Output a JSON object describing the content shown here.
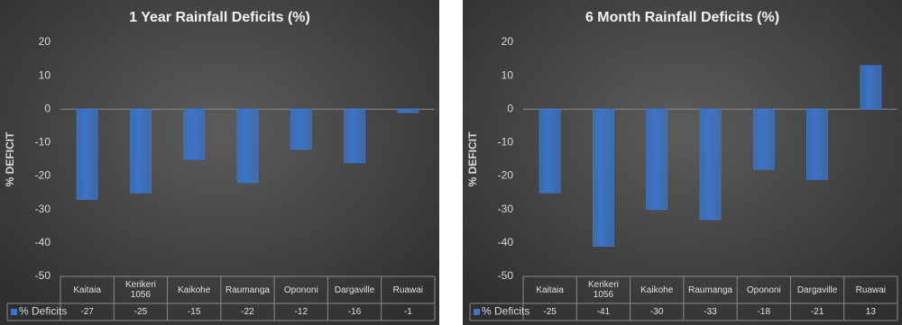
{
  "chart_data": [
    {
      "type": "bar",
      "title": "1 Year Rainfall Deficits (%)",
      "y_label": "% DEFICIT",
      "categories": [
        "Kaitaia",
        "Kerikeri 1056",
        "Kaikohe",
        "Raumanga",
        "Opononi",
        "Dargaville",
        "Ruawai"
      ],
      "series": [
        {
          "name": "% Deficits",
          "color": "#3b74c8",
          "values": [
            -27,
            -25,
            -15,
            -22,
            -12,
            -16,
            -1
          ]
        }
      ],
      "ylim": [
        -50,
        20
      ],
      "yticks": [
        -50,
        -40,
        -30,
        -20,
        -10,
        0,
        10,
        20
      ]
    },
    {
      "type": "bar",
      "title": "6 Month Rainfall Deficits (%)",
      "y_label": "% DEFICIT",
      "categories": [
        "Kaitaia",
        "Kerikeri 1056",
        "Kaikohe",
        "Raumanga",
        "Opononi",
        "Dargaville",
        "Ruawai"
      ],
      "series": [
        {
          "name": "% Deficits",
          "color": "#3b74c8",
          "values": [
            -25,
            -41,
            -30,
            -33,
            -18,
            -21,
            13
          ]
        }
      ],
      "ylim": [
        -50,
        20
      ],
      "yticks": [
        -50,
        -40,
        -30,
        -20,
        -10,
        0,
        10,
        20
      ]
    }
  ]
}
